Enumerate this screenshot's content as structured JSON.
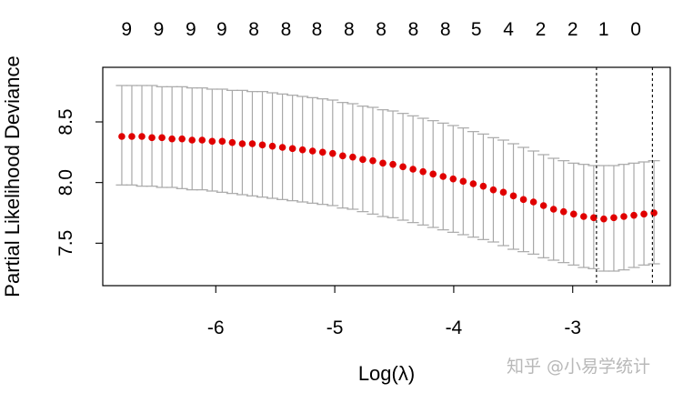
{
  "chart_data": {
    "type": "scatter",
    "xlabel": "Log(λ)",
    "ylabel": "Partial Likelihood Deviance",
    "xlim": [
      -6.95,
      -2.18
    ],
    "ylim": [
      7.15,
      8.95
    ],
    "x_ticks": [
      "-6",
      "-5",
      "-4",
      "-3"
    ],
    "x_tick_values": [
      -6,
      -5,
      -4,
      -3
    ],
    "y_ticks": [
      "7.5",
      "8.0",
      "8.5"
    ],
    "y_tick_values": [
      7.5,
      8.0,
      8.5
    ],
    "top_axis": {
      "labels": [
        "9",
        "9",
        "9",
        "9",
        "8",
        "8",
        "8",
        "8",
        "8",
        "8",
        "8",
        "5",
        "4",
        "2",
        "2",
        "1",
        "0"
      ],
      "positions": [
        -6.75,
        -6.48,
        -6.21,
        -5.95,
        -5.68,
        -5.41,
        -5.15,
        -4.88,
        -4.61,
        -4.34,
        -4.07,
        -3.81,
        -3.54,
        -3.27,
        -3.0,
        -2.74,
        -2.47
      ]
    },
    "vlines": [
      -2.8,
      -2.33
    ],
    "series": [
      {
        "x_start": -6.79,
        "x_step": 0.0844,
        "values": [
          8.38,
          8.38,
          8.38,
          8.37,
          8.37,
          8.36,
          8.36,
          8.35,
          8.35,
          8.34,
          8.34,
          8.33,
          8.32,
          8.32,
          8.31,
          8.3,
          8.29,
          8.28,
          8.27,
          8.26,
          8.25,
          8.24,
          8.22,
          8.21,
          8.19,
          8.18,
          8.16,
          8.15,
          8.13,
          8.11,
          8.09,
          8.07,
          8.05,
          8.03,
          8.01,
          7.99,
          7.97,
          7.94,
          7.92,
          7.89,
          7.86,
          7.84,
          7.81,
          7.78,
          7.76,
          7.74,
          7.72,
          7.71,
          7.7,
          7.71,
          7.72,
          7.73,
          7.74,
          7.75
        ],
        "upper": [
          8.8,
          8.8,
          8.8,
          8.8,
          8.79,
          8.79,
          8.79,
          8.78,
          8.78,
          8.77,
          8.77,
          8.76,
          8.76,
          8.75,
          8.75,
          8.74,
          8.73,
          8.72,
          8.71,
          8.7,
          8.69,
          8.68,
          8.66,
          8.65,
          8.63,
          8.62,
          8.6,
          8.59,
          8.57,
          8.55,
          8.53,
          8.51,
          8.49,
          8.47,
          8.45,
          8.42,
          8.4,
          8.37,
          8.35,
          8.32,
          8.29,
          8.26,
          8.23,
          8.2,
          8.18,
          8.16,
          8.15,
          8.14,
          8.14,
          8.14,
          8.15,
          8.16,
          8.17,
          8.18
        ],
        "lower": [
          7.98,
          7.98,
          7.97,
          7.97,
          7.96,
          7.96,
          7.95,
          7.94,
          7.94,
          7.93,
          7.92,
          7.91,
          7.9,
          7.89,
          7.88,
          7.87,
          7.86,
          7.85,
          7.84,
          7.83,
          7.82,
          7.81,
          7.79,
          7.78,
          7.76,
          7.74,
          7.72,
          7.71,
          7.69,
          7.67,
          7.65,
          7.63,
          7.61,
          7.59,
          7.57,
          7.55,
          7.53,
          7.51,
          7.48,
          7.45,
          7.43,
          7.41,
          7.38,
          7.36,
          7.34,
          7.32,
          7.3,
          7.29,
          7.27,
          7.27,
          7.28,
          7.3,
          7.32,
          7.33
        ]
      }
    ],
    "colors": {
      "points": "#e00000",
      "errorbars": "#a8a8a8",
      "vlines": "#000000",
      "frame": "#000000"
    }
  },
  "watermark": "知乎 @小易学统计"
}
